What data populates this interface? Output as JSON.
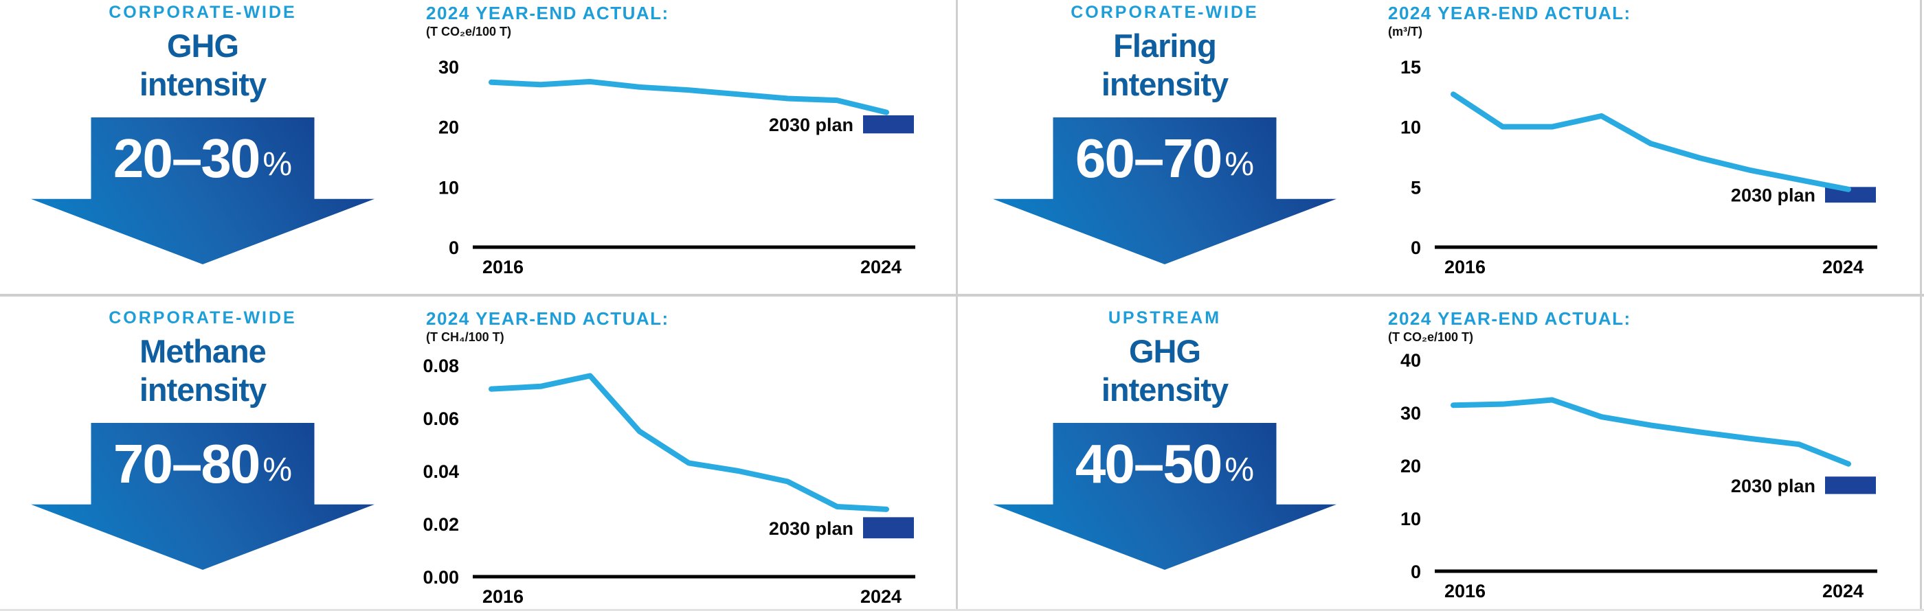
{
  "colors": {
    "light_blue": "#1E9ED9",
    "dark_blue": "#0F5FA0",
    "navy": "#1C429A",
    "line": "#29ABE2",
    "divider": "#CFCFCF",
    "arrow_gradient": [
      "#0A83C9",
      "#1A64AE",
      "#123B8B"
    ]
  },
  "panels": [
    {
      "tag": "CORPORATE-WIDE",
      "title_line1": "GHG",
      "title_line2": "intensity",
      "range_text": "20–30",
      "percent_sign": "%"
    },
    {
      "tag": "CORPORATE-WIDE",
      "title_line1": "Flaring",
      "title_line2": "intensity",
      "range_text": "60–70",
      "percent_sign": "%"
    },
    {
      "tag": "CORPORATE-WIDE",
      "title_line1": "Methane",
      "title_line2": "intensity",
      "range_text": "70–80",
      "percent_sign": "%"
    },
    {
      "tag": "UPSTREAM",
      "title_line1": "GHG",
      "title_line2": "intensity",
      "range_text": "40–50",
      "percent_sign": "%"
    }
  ],
  "chart_data": [
    {
      "type": "line",
      "title": "2024 YEAR-END ACTUAL:",
      "unit_label": "(T CO₂e/100 T)",
      "x": [
        2016,
        2017,
        2018,
        2019,
        2020,
        2021,
        2022,
        2023,
        2024
      ],
      "values": [
        27.4,
        27.0,
        27.5,
        26.6,
        26.1,
        25.4,
        24.7,
        24.4,
        22.4
      ],
      "yticks": [
        0,
        10,
        20,
        30
      ],
      "ytick_labels": [
        "0",
        "10",
        "20",
        "30"
      ],
      "xtick_labels": [
        "2016",
        "2024"
      ],
      "ylim": [
        0,
        30
      ],
      "grid": false,
      "line_color": "#29ABE2",
      "plan": {
        "label": "2030 plan",
        "range": [
          18.9,
          21.9
        ]
      }
    },
    {
      "type": "line",
      "title": "2024 YEAR-END ACTUAL:",
      "unit_label": "(m³/T)",
      "x": [
        2016,
        2017,
        2018,
        2019,
        2020,
        2021,
        2022,
        2023,
        2024
      ],
      "values": [
        12.7,
        10.0,
        10.0,
        10.9,
        8.6,
        7.4,
        6.4,
        5.6,
        4.8
      ],
      "yticks": [
        0,
        5,
        10,
        15
      ],
      "ytick_labels": [
        "0",
        "5",
        "10",
        "15"
      ],
      "xtick_labels": [
        "2016",
        "2024"
      ],
      "ylim": [
        0,
        15
      ],
      "grid": false,
      "line_color": "#29ABE2",
      "plan": {
        "label": "2030 plan",
        "range": [
          3.7,
          5.0
        ]
      }
    },
    {
      "type": "line",
      "title": "2024 YEAR-END ACTUAL:",
      "unit_label": "(T CH₄/100 T)",
      "x": [
        2016,
        2017,
        2018,
        2019,
        2020,
        2021,
        2022,
        2023,
        2024
      ],
      "values": [
        0.071,
        0.072,
        0.076,
        0.055,
        0.043,
        0.04,
        0.036,
        0.0265,
        0.0255
      ],
      "yticks": [
        0,
        0.02,
        0.04,
        0.06,
        0.08
      ],
      "ytick_labels": [
        "0.00",
        "0.02",
        "0.04",
        "0.06",
        "0.08"
      ],
      "xtick_labels": [
        "2016",
        "2024"
      ],
      "ylim": [
        0,
        0.08
      ],
      "grid": false,
      "line_color": "#29ABE2",
      "plan": {
        "label": "2030 plan",
        "range": [
          0.0145,
          0.0225
        ]
      }
    },
    {
      "type": "line",
      "title": "2024 YEAR-END ACTUAL:",
      "unit_label": "(T CO₂e/100 T)",
      "x": [
        2016,
        2017,
        2018,
        2019,
        2020,
        2021,
        2022,
        2023,
        2024
      ],
      "values": [
        31.4,
        31.6,
        32.4,
        29.2,
        27.6,
        26.3,
        25.1,
        24.0,
        20.3
      ],
      "yticks": [
        0,
        10,
        20,
        30,
        40
      ],
      "ytick_labels": [
        "0",
        "10",
        "20",
        "30",
        "40"
      ],
      "xtick_labels": [
        "2016",
        "2024"
      ],
      "ylim": [
        0,
        40
      ],
      "grid": false,
      "line_color": "#29ABE2",
      "plan": {
        "label": "2030 plan",
        "range": [
          14.6,
          17.9
        ]
      }
    }
  ]
}
